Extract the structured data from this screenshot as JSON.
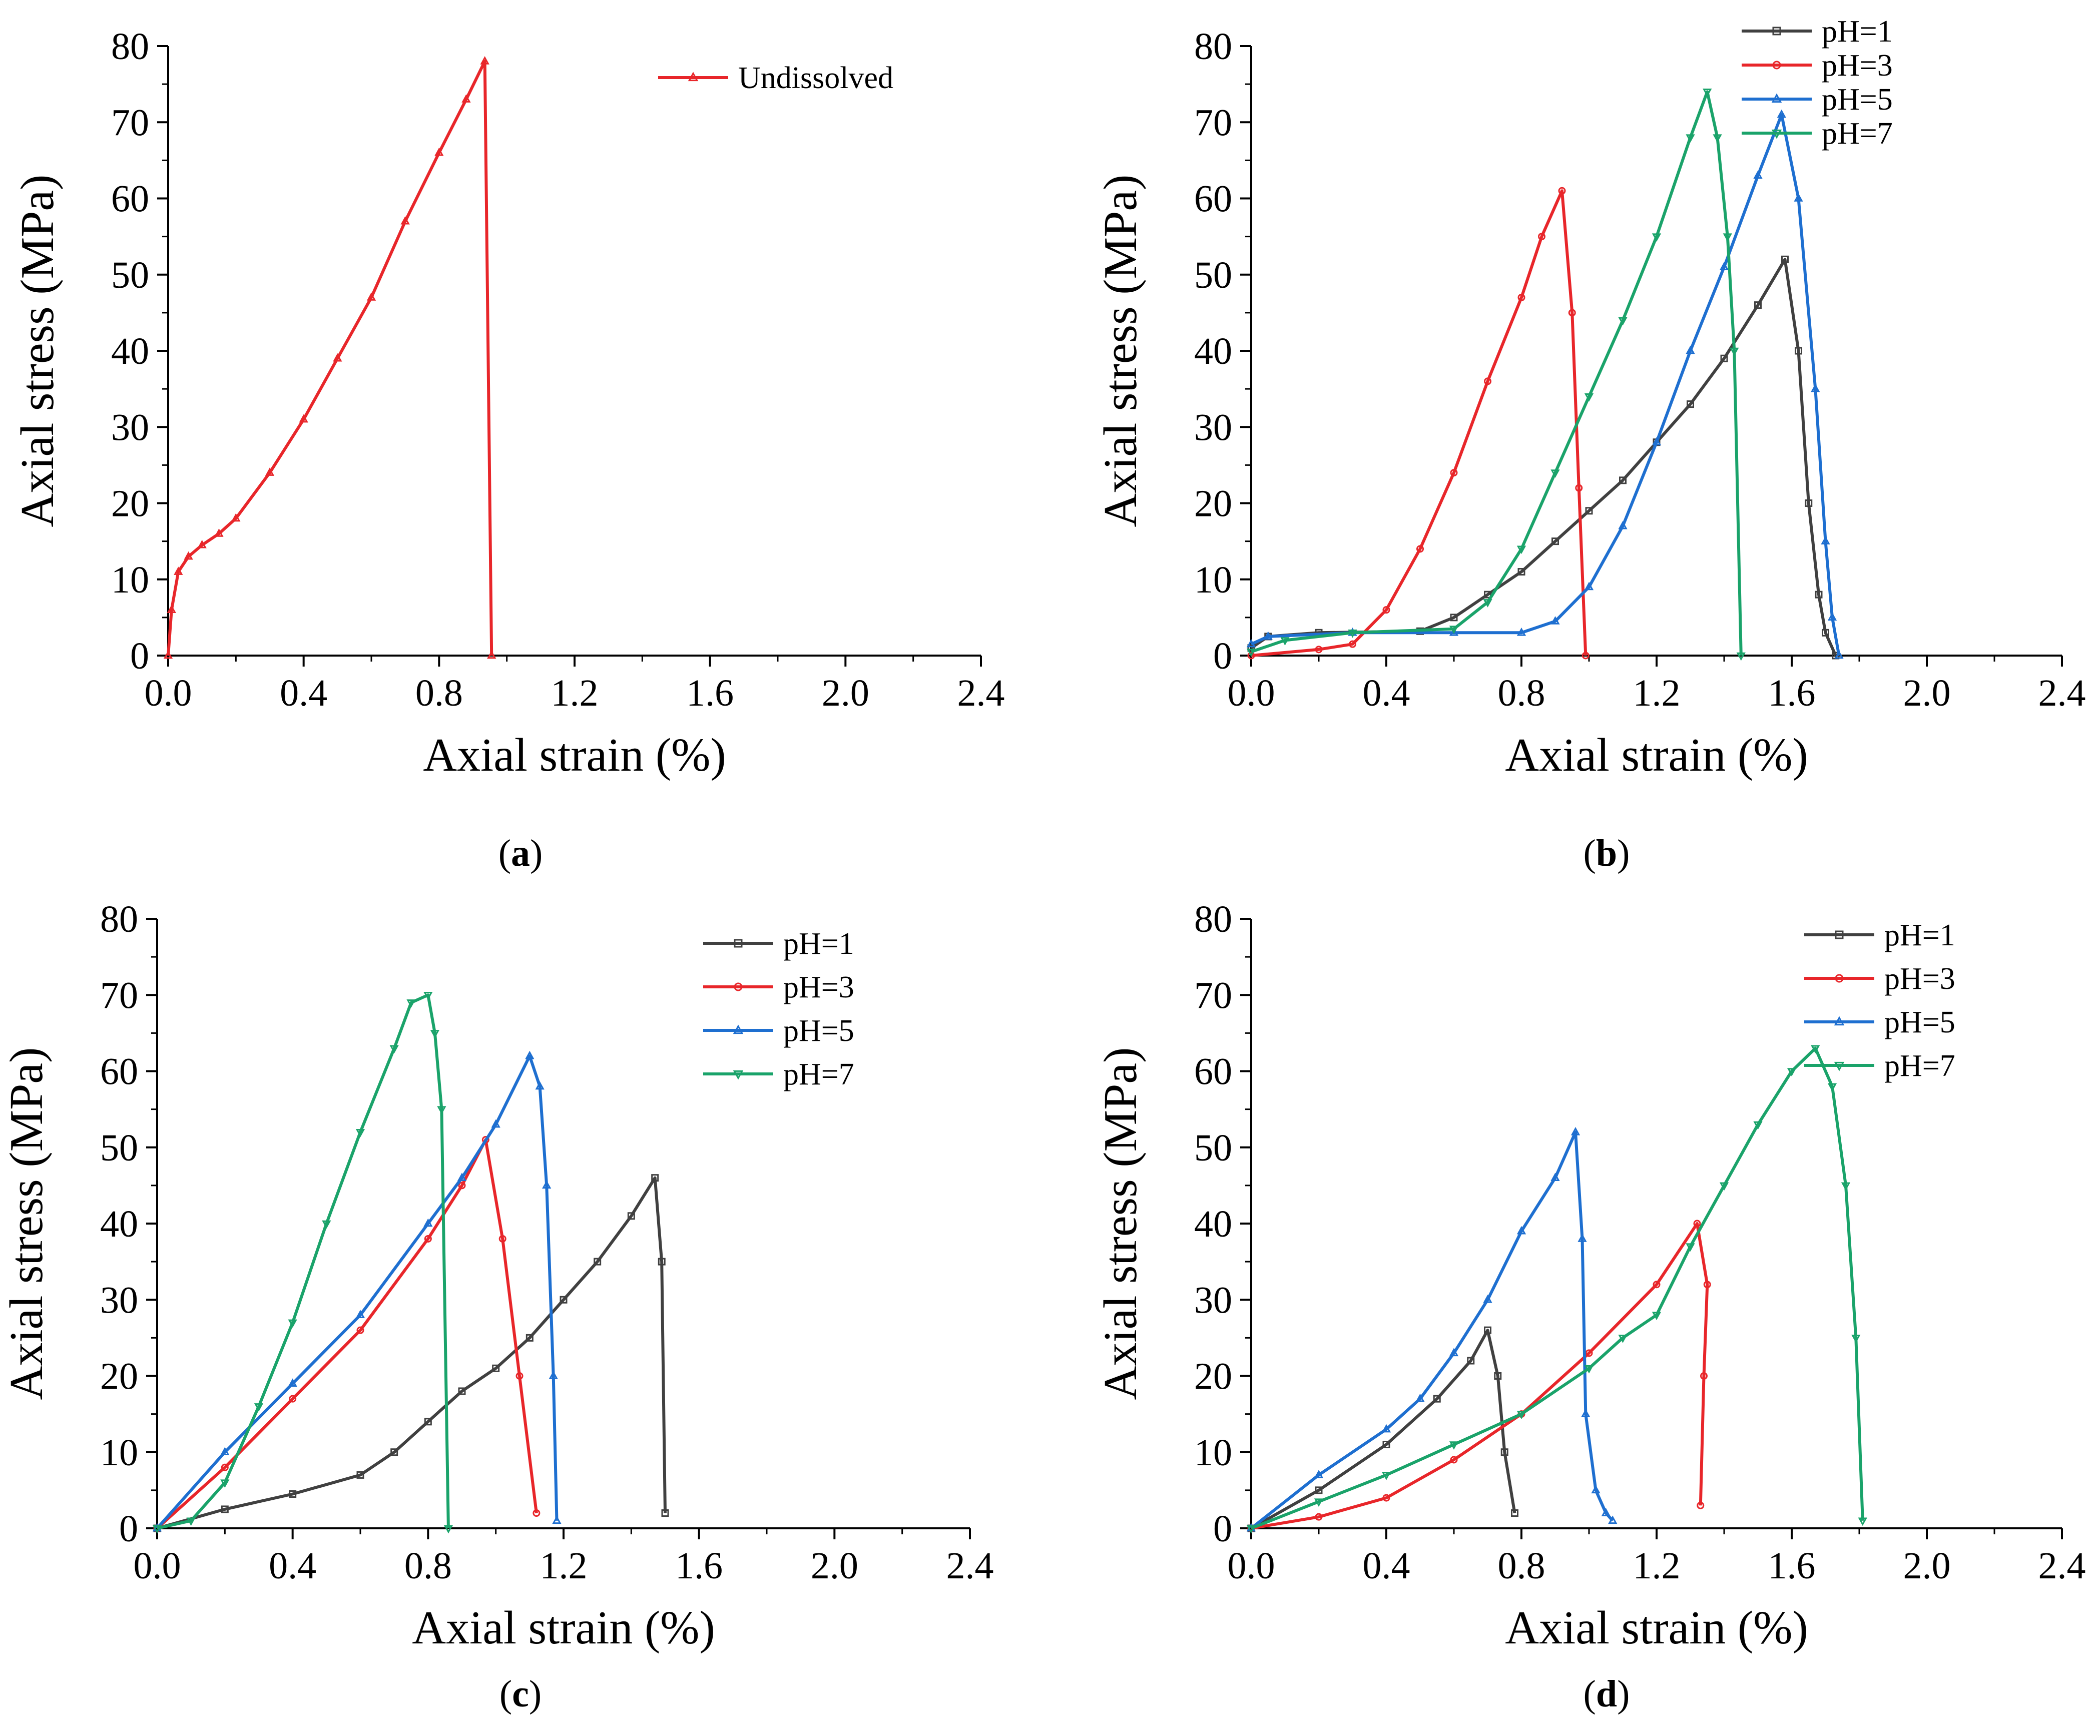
{
  "panels": [
    {
      "label_open": "(",
      "label_letter": "a",
      "label_close": ")"
    },
    {
      "label_open": "(",
      "label_letter": "b",
      "label_close": ")"
    },
    {
      "label_open": "(",
      "label_letter": "c",
      "label_close": ")"
    },
    {
      "label_open": "(",
      "label_letter": "d",
      "label_close": ")"
    }
  ],
  "chart_data": [
    {
      "type": "line",
      "xlabel": "Axial strain (%)",
      "ylabel": "Axial stress (MPa)",
      "xlim": [
        0,
        2.4
      ],
      "ylim": [
        0,
        80
      ],
      "xticks": [
        "0.0",
        "0.4",
        "0.8",
        "1.2",
        "1.6",
        "2.0",
        "2.4"
      ],
      "yticks": [
        "0",
        "10",
        "20",
        "30",
        "40",
        "50",
        "60",
        "70",
        "80"
      ],
      "legend_position": "top-right",
      "grid": false,
      "series": [
        {
          "name": "Undissolved",
          "color": "#e8262a",
          "marker": "triangle-up",
          "points": [
            [
              0,
              0
            ],
            [
              0.01,
              6
            ],
            [
              0.03,
              11
            ],
            [
              0.06,
              13
            ],
            [
              0.1,
              14.5
            ],
            [
              0.15,
              16
            ],
            [
              0.2,
              18
            ],
            [
              0.3,
              24
            ],
            [
              0.4,
              31
            ],
            [
              0.5,
              39
            ],
            [
              0.6,
              47
            ],
            [
              0.7,
              57
            ],
            [
              0.8,
              66
            ],
            [
              0.88,
              73
            ],
            [
              0.935,
              78
            ],
            [
              0.955,
              0
            ]
          ]
        }
      ]
    },
    {
      "type": "line",
      "xlabel": "Axial strain (%)",
      "ylabel": "Axial stress (MPa)",
      "xlim": [
        0,
        2.4
      ],
      "ylim": [
        0,
        80
      ],
      "xticks": [
        "0.0",
        "0.4",
        "0.8",
        "1.2",
        "1.6",
        "2.0",
        "2.4"
      ],
      "yticks": [
        "0",
        "10",
        "20",
        "30",
        "40",
        "50",
        "60",
        "70",
        "80"
      ],
      "legend_position": "top-right",
      "grid": false,
      "series": [
        {
          "name": "pH=1",
          "color": "#404040",
          "marker": "square",
          "points": [
            [
              0,
              1
            ],
            [
              0.05,
              2.5
            ],
            [
              0.2,
              3
            ],
            [
              0.5,
              3.2
            ],
            [
              0.6,
              5
            ],
            [
              0.7,
              8
            ],
            [
              0.8,
              11
            ],
            [
              0.9,
              15
            ],
            [
              1.0,
              19
            ],
            [
              1.1,
              23
            ],
            [
              1.2,
              28
            ],
            [
              1.3,
              33
            ],
            [
              1.4,
              39
            ],
            [
              1.5,
              46
            ],
            [
              1.58,
              52
            ],
            [
              1.62,
              40
            ],
            [
              1.65,
              20
            ],
            [
              1.68,
              8
            ],
            [
              1.7,
              3
            ],
            [
              1.73,
              0
            ]
          ]
        },
        {
          "name": "pH=3",
          "color": "#e8262a",
          "marker": "circle",
          "points": [
            [
              0,
              0
            ],
            [
              0.2,
              0.8
            ],
            [
              0.3,
              1.5
            ],
            [
              0.4,
              6
            ],
            [
              0.5,
              14
            ],
            [
              0.6,
              24
            ],
            [
              0.7,
              36
            ],
            [
              0.8,
              47
            ],
            [
              0.86,
              55
            ],
            [
              0.92,
              61
            ],
            [
              0.95,
              45
            ],
            [
              0.97,
              22
            ],
            [
              0.99,
              0
            ]
          ]
        },
        {
          "name": "pH=5",
          "color": "#1e6fd0",
          "marker": "triangle-up",
          "points": [
            [
              0,
              1.5
            ],
            [
              0.05,
              2.5
            ],
            [
              0.3,
              3
            ],
            [
              0.6,
              3
            ],
            [
              0.8,
              3
            ],
            [
              0.9,
              4.5
            ],
            [
              1.0,
              9
            ],
            [
              1.1,
              17
            ],
            [
              1.2,
              28
            ],
            [
              1.3,
              40
            ],
            [
              1.4,
              51
            ],
            [
              1.5,
              63
            ],
            [
              1.57,
              71
            ],
            [
              1.62,
              60
            ],
            [
              1.67,
              35
            ],
            [
              1.7,
              15
            ],
            [
              1.72,
              5
            ],
            [
              1.74,
              0
            ]
          ]
        },
        {
          "name": "pH=7",
          "color": "#1aa36a",
          "marker": "triangle-down",
          "points": [
            [
              0,
              0.5
            ],
            [
              0.1,
              2
            ],
            [
              0.3,
              3
            ],
            [
              0.6,
              3.5
            ],
            [
              0.7,
              7
            ],
            [
              0.8,
              14
            ],
            [
              0.9,
              24
            ],
            [
              1.0,
              34
            ],
            [
              1.1,
              44
            ],
            [
              1.2,
              55
            ],
            [
              1.3,
              68
            ],
            [
              1.35,
              74
            ],
            [
              1.38,
              68
            ],
            [
              1.41,
              55
            ],
            [
              1.43,
              40
            ],
            [
              1.45,
              0
            ]
          ]
        }
      ]
    },
    {
      "type": "line",
      "xlabel": "Axial strain (%)",
      "ylabel": "Axial stress (MPa)",
      "xlim": [
        0,
        2.4
      ],
      "ylim": [
        0,
        80
      ],
      "xticks": [
        "0.0",
        "0.4",
        "0.8",
        "1.2",
        "1.6",
        "2.0",
        "2.4"
      ],
      "yticks": [
        "0",
        "10",
        "20",
        "30",
        "40",
        "50",
        "60",
        "70",
        "80"
      ],
      "legend_position": "top-right",
      "grid": false,
      "series": [
        {
          "name": "pH=1",
          "color": "#404040",
          "marker": "square",
          "points": [
            [
              0,
              0
            ],
            [
              0.2,
              2.5
            ],
            [
              0.4,
              4.5
            ],
            [
              0.6,
              7
            ],
            [
              0.7,
              10
            ],
            [
              0.8,
              14
            ],
            [
              0.9,
              18
            ],
            [
              1.0,
              21
            ],
            [
              1.1,
              25
            ],
            [
              1.2,
              30
            ],
            [
              1.3,
              35
            ],
            [
              1.4,
              41
            ],
            [
              1.47,
              46
            ],
            [
              1.49,
              35
            ],
            [
              1.5,
              2
            ]
          ]
        },
        {
          "name": "pH=3",
          "color": "#e8262a",
          "marker": "circle",
          "points": [
            [
              0,
              0
            ],
            [
              0.2,
              8
            ],
            [
              0.4,
              17
            ],
            [
              0.6,
              26
            ],
            [
              0.8,
              38
            ],
            [
              0.9,
              45
            ],
            [
              0.97,
              51
            ],
            [
              1.02,
              38
            ],
            [
              1.07,
              20
            ],
            [
              1.12,
              2
            ]
          ]
        },
        {
          "name": "pH=5",
          "color": "#1e6fd0",
          "marker": "triangle-up",
          "points": [
            [
              0,
              0
            ],
            [
              0.2,
              10
            ],
            [
              0.4,
              19
            ],
            [
              0.6,
              28
            ],
            [
              0.8,
              40
            ],
            [
              0.9,
              46
            ],
            [
              1.0,
              53
            ],
            [
              1.1,
              62
            ],
            [
              1.13,
              58
            ],
            [
              1.15,
              45
            ],
            [
              1.17,
              20
            ],
            [
              1.18,
              1
            ]
          ]
        },
        {
          "name": "pH=7",
          "color": "#1aa36a",
          "marker": "triangle-down",
          "points": [
            [
              0,
              0
            ],
            [
              0.1,
              1
            ],
            [
              0.2,
              6
            ],
            [
              0.3,
              16
            ],
            [
              0.4,
              27
            ],
            [
              0.5,
              40
            ],
            [
              0.6,
              52
            ],
            [
              0.7,
              63
            ],
            [
              0.75,
              69
            ],
            [
              0.8,
              70
            ],
            [
              0.82,
              65
            ],
            [
              0.84,
              55
            ],
            [
              0.86,
              0
            ]
          ]
        }
      ]
    },
    {
      "type": "line",
      "xlabel": "Axial strain (%)",
      "ylabel": "Axial stress (MPa)",
      "xlim": [
        0,
        2.4
      ],
      "ylim": [
        0,
        80
      ],
      "xticks": [
        "0.0",
        "0.4",
        "0.8",
        "1.2",
        "1.6",
        "2.0",
        "2.4"
      ],
      "yticks": [
        "0",
        "10",
        "20",
        "30",
        "40",
        "50",
        "60",
        "70",
        "80"
      ],
      "legend_position": "top-right",
      "grid": false,
      "series": [
        {
          "name": "pH=1",
          "color": "#404040",
          "marker": "square",
          "points": [
            [
              0,
              0
            ],
            [
              0.2,
              5
            ],
            [
              0.4,
              11
            ],
            [
              0.55,
              17
            ],
            [
              0.65,
              22
            ],
            [
              0.7,
              26
            ],
            [
              0.73,
              20
            ],
            [
              0.75,
              10
            ],
            [
              0.78,
              2
            ]
          ]
        },
        {
          "name": "pH=3",
          "color": "#e8262a",
          "marker": "circle",
          "points": [
            [
              0,
              0
            ],
            [
              0.2,
              1.5
            ],
            [
              0.4,
              4
            ],
            [
              0.6,
              9
            ],
            [
              0.8,
              15
            ],
            [
              1.0,
              23
            ],
            [
              1.2,
              32
            ],
            [
              1.32,
              40
            ],
            [
              1.35,
              32
            ],
            [
              1.34,
              20
            ],
            [
              1.33,
              3
            ]
          ]
        },
        {
          "name": "pH=5",
          "color": "#1e6fd0",
          "marker": "triangle-up",
          "points": [
            [
              0,
              0
            ],
            [
              0.2,
              7
            ],
            [
              0.4,
              13
            ],
            [
              0.5,
              17
            ],
            [
              0.6,
              23
            ],
            [
              0.7,
              30
            ],
            [
              0.8,
              39
            ],
            [
              0.9,
              46
            ],
            [
              0.96,
              52
            ],
            [
              0.98,
              38
            ],
            [
              0.99,
              15
            ],
            [
              1.02,
              5
            ],
            [
              1.05,
              2
            ],
            [
              1.07,
              1
            ]
          ]
        },
        {
          "name": "pH=7",
          "color": "#1aa36a",
          "marker": "triangle-down",
          "points": [
            [
              0,
              0
            ],
            [
              0.2,
              3.5
            ],
            [
              0.4,
              7
            ],
            [
              0.6,
              11
            ],
            [
              0.8,
              15
            ],
            [
              1.0,
              21
            ],
            [
              1.1,
              25
            ],
            [
              1.2,
              28
            ],
            [
              1.3,
              37
            ],
            [
              1.4,
              45
            ],
            [
              1.5,
              53
            ],
            [
              1.6,
              60
            ],
            [
              1.67,
              63
            ],
            [
              1.72,
              58
            ],
            [
              1.76,
              45
            ],
            [
              1.79,
              25
            ],
            [
              1.81,
              1
            ]
          ]
        }
      ]
    }
  ]
}
